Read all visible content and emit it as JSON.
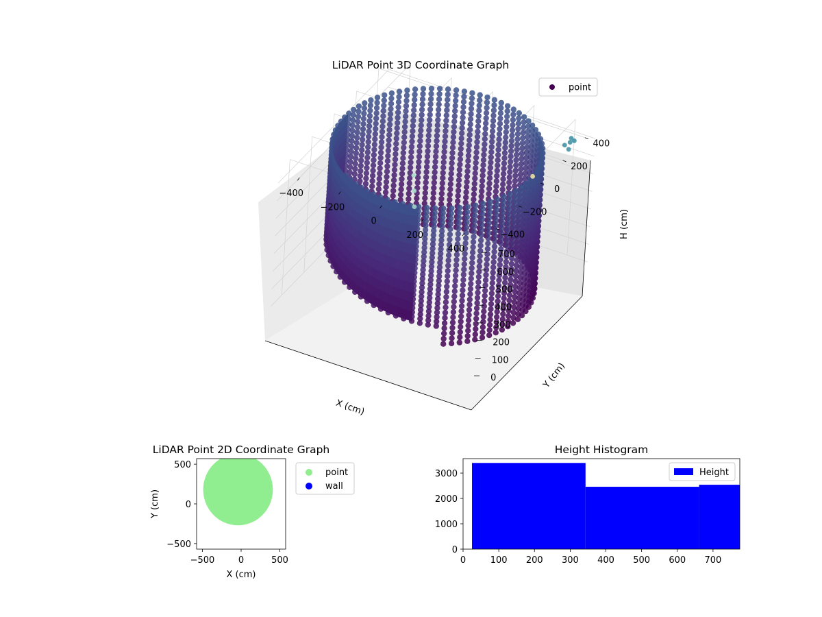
{
  "chart_data": [
    {
      "type": "scatter",
      "projection": "3d",
      "title": "LiDAR Point 3D Coordinate Graph",
      "xlabel": "X (cm)",
      "ylabel": "Y (cm)",
      "zlabel": "H (cm)",
      "xticks": [
        "−400",
        "−200",
        "0",
        "200",
        "400"
      ],
      "yticks": [
        "−400",
        "−200",
        "0",
        "200",
        "400"
      ],
      "zticks": [
        "0",
        "100",
        "200",
        "300",
        "400",
        "500",
        "600",
        "700"
      ],
      "xlim": [
        -500,
        500
      ],
      "ylim": [
        -500,
        500
      ],
      "zlim": [
        770,
        0
      ],
      "legend": {
        "label": "point",
        "position": "top-right"
      },
      "colormap": "viridis",
      "structure": {
        "shape": "cylindrical wall",
        "center": [
          0,
          0
        ],
        "radius": 450,
        "h_min": 0,
        "h_max": 770,
        "outliers": [
          {
            "x": -330,
            "y": 480,
            "h": 0,
            "color": "#a6d9cb"
          },
          {
            "x": -340,
            "y": 490,
            "h": 80,
            "color": "#a6d9cb"
          },
          {
            "x": -350,
            "y": 495,
            "h": 160,
            "color": "#a6d9cb"
          },
          {
            "x": 470,
            "y": 330,
            "h": 800,
            "color": "#3a8ea0"
          },
          {
            "x": 480,
            "y": 300,
            "h": 800,
            "color": "#3a8ea0"
          },
          {
            "x": 500,
            "y": 250,
            "h": 800,
            "color": "#3a8ea0"
          },
          {
            "x": 470,
            "y": 270,
            "h": 800,
            "color": "#3a8ea0"
          },
          {
            "x": 490,
            "y": 320,
            "h": 800,
            "color": "#3a8ea0"
          },
          {
            "x": 500,
            "y": -80,
            "h": 860,
            "color": "#fde9a0"
          }
        ]
      },
      "colors": {
        "top": "#440154",
        "mid": "#482878",
        "bottom": "#3b528b"
      }
    },
    {
      "type": "scatter",
      "title": "LiDAR Point 2D Coordinate Graph",
      "xlabel": "X (cm)",
      "ylabel": "Y (cm)",
      "xticks": [
        "−500",
        "0",
        "500"
      ],
      "yticks": [
        "−500",
        "0",
        "500"
      ],
      "xlim": [
        -575,
        575
      ],
      "ylim": [
        -570,
        570
      ],
      "series": [
        {
          "name": "point",
          "color": "#90ee90",
          "shape": "disc",
          "center": [
            -40,
            180
          ],
          "radius": 450
        },
        {
          "name": "wall",
          "color": "#0000ff",
          "points": []
        }
      ],
      "legend": {
        "position": "outside-right"
      }
    },
    {
      "type": "bar",
      "title": "Height Histogram",
      "xlabel": "",
      "ylabel": "",
      "xticks": [
        "0",
        "100",
        "200",
        "300",
        "400",
        "500",
        "600",
        "700"
      ],
      "yticks": [
        "0",
        "1000",
        "2000",
        "3000"
      ],
      "xlim": [
        0,
        775
      ],
      "ylim": [
        0,
        3570
      ],
      "bins": [
        {
          "x0": 25,
          "x1": 343,
          "value": 3400
        },
        {
          "x0": 343,
          "x1": 661,
          "value": 2460
        },
        {
          "x0": 661,
          "x1": 775,
          "value": 2540
        }
      ],
      "series": [
        {
          "name": "Height",
          "color": "#0000ff"
        }
      ],
      "legend": {
        "position": "top-right"
      }
    }
  ]
}
